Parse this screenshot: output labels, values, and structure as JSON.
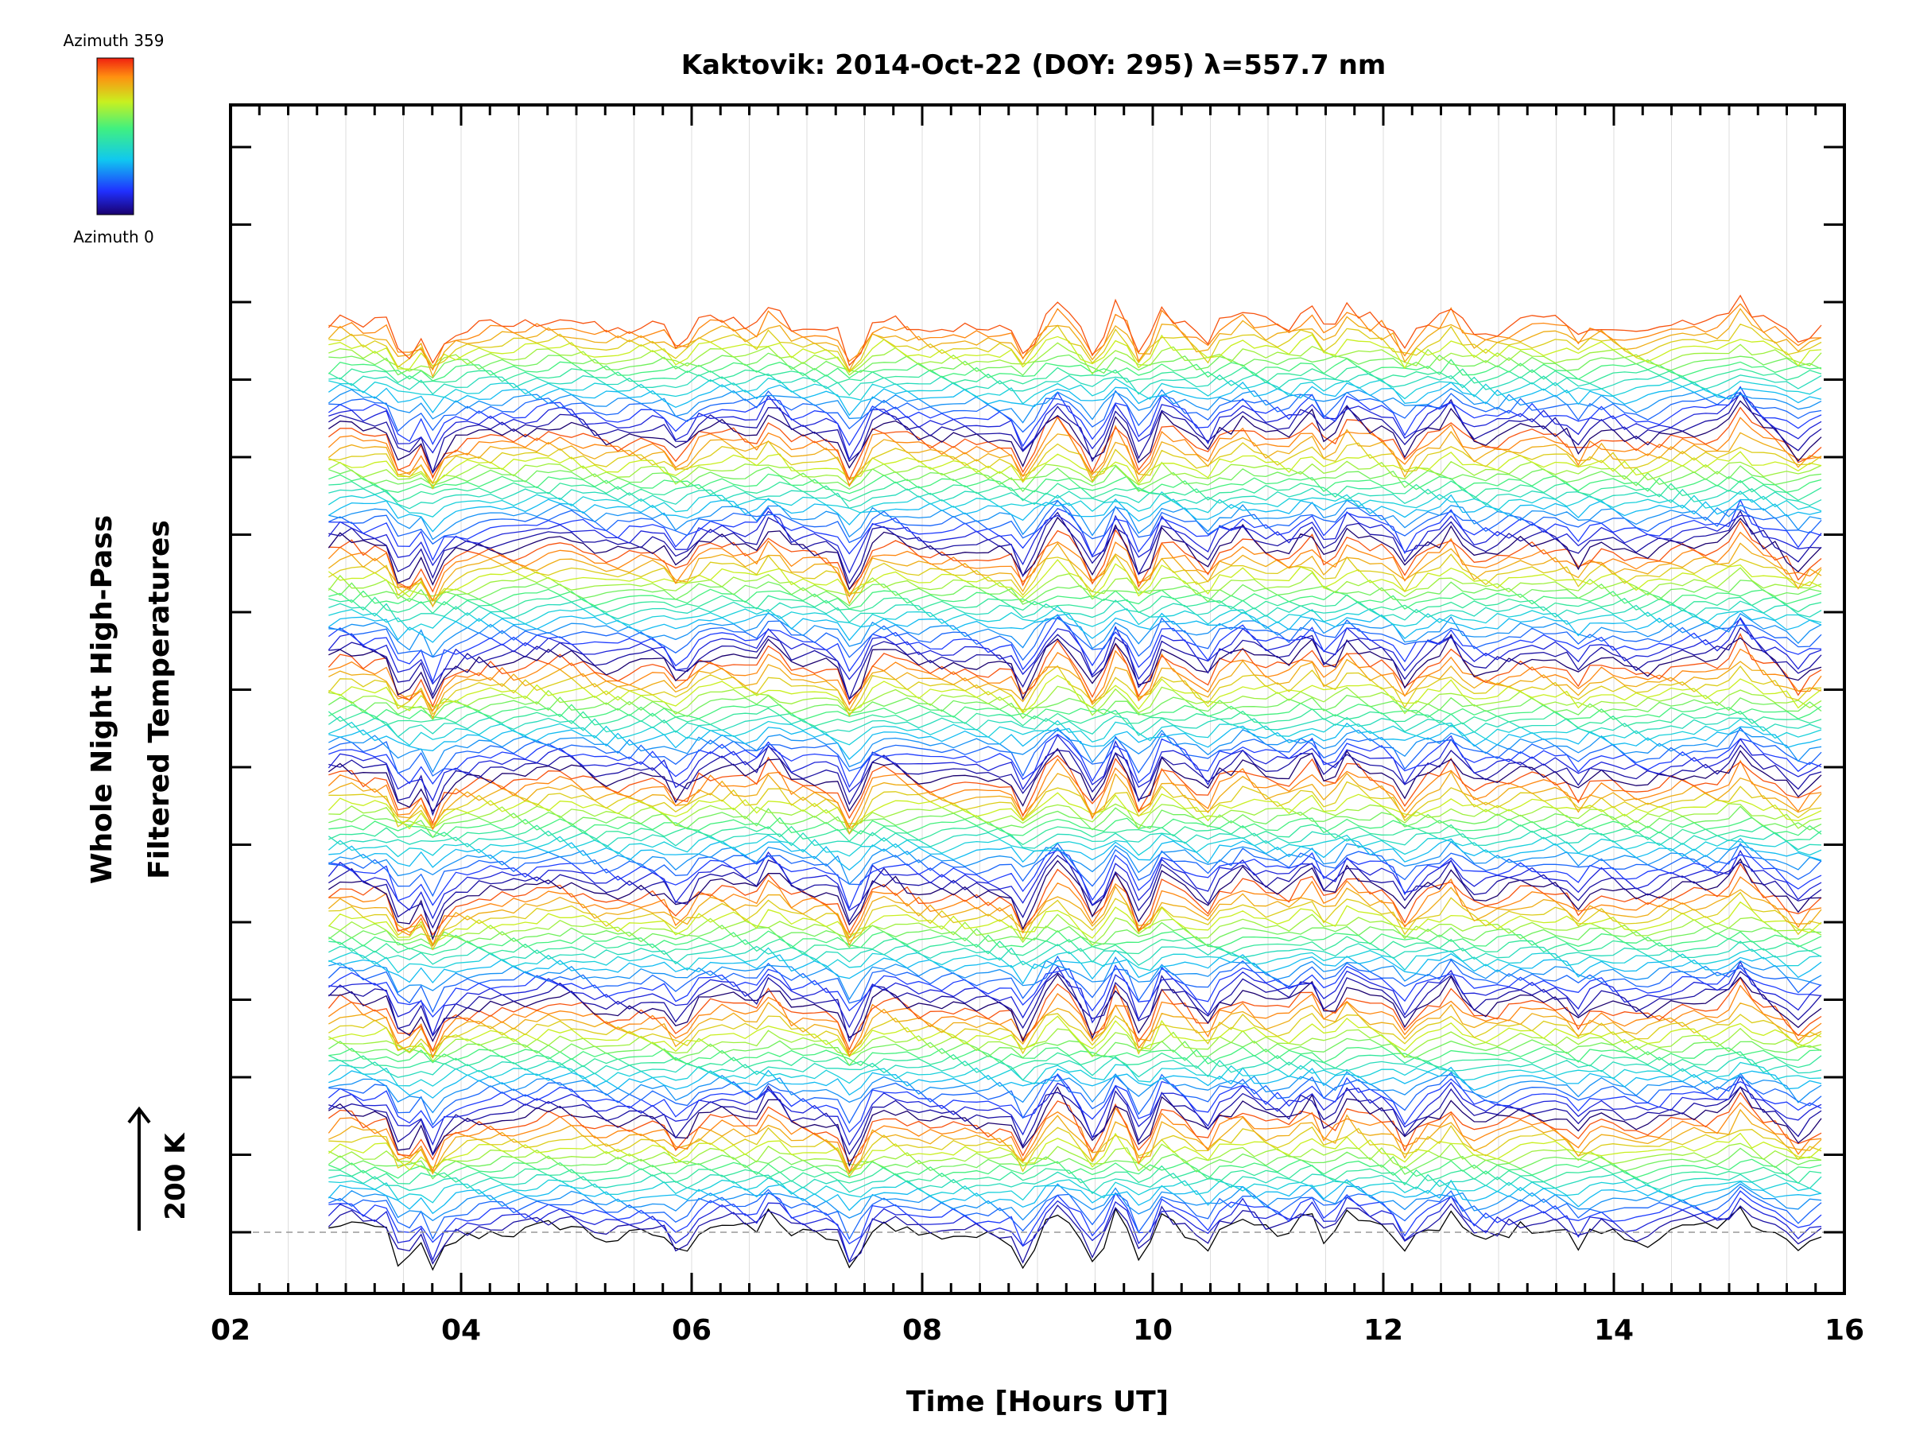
{
  "chart_data": {
    "type": "line",
    "title": "Kaktovik: 2014-Oct-22 (DOY: 295) λ=557.7 nm",
    "xlabel": "Time [Hours UT]",
    "ylabel_line1": "Whole Night High-Pass",
    "ylabel_line2": "Filtered Temperatures",
    "xlim": [
      2,
      16
    ],
    "x_ticks": [
      "02",
      "04",
      "06",
      "08",
      "10",
      "12",
      "14",
      "16"
    ],
    "x_tick_values": [
      2,
      4,
      6,
      8,
      10,
      12,
      14,
      16
    ],
    "x_minor_step": 0.25,
    "y_offset_step": 25,
    "y_major_ticks": 15,
    "scale_label": "200 K",
    "colorbar": {
      "max_label": "Azimuth 359",
      "min_label": "Azimuth 0",
      "colormap": "rainbow"
    },
    "series_summary": {
      "count": 144,
      "time_start": 2.85,
      "time_end": 15.8,
      "samples": 130,
      "azimuth_min": 0,
      "azimuth_max": 359,
      "offset_per_series": 25,
      "groups": 8
    },
    "features": [
      {
        "t": 3.0,
        "amp": 30
      },
      {
        "t": 3.5,
        "amp": -150
      },
      {
        "t": 3.75,
        "amp": -120
      },
      {
        "t": 5.9,
        "amp": -70
      },
      {
        "t": 6.7,
        "amp": 90
      },
      {
        "t": 7.4,
        "amp": -140
      },
      {
        "t": 8.9,
        "amp": -120
      },
      {
        "t": 9.2,
        "amp": 60
      },
      {
        "t": 9.5,
        "amp": -90
      },
      {
        "t": 9.7,
        "amp": 70
      },
      {
        "t": 9.9,
        "amp": -80
      },
      {
        "t": 10.1,
        "amp": 80
      },
      {
        "t": 10.45,
        "amp": -90
      },
      {
        "t": 10.8,
        "amp": 50
      },
      {
        "t": 11.35,
        "amp": 90
      },
      {
        "t": 11.7,
        "amp": 60
      },
      {
        "t": 12.2,
        "amp": -80
      },
      {
        "t": 12.6,
        "amp": 70
      },
      {
        "t": 13.7,
        "amp": -60
      },
      {
        "t": 15.1,
        "amp": 70
      },
      {
        "t": 15.6,
        "amp": -40
      }
    ],
    "baseline_dashed": true,
    "grid": true,
    "legend": "colorbar top-left"
  }
}
